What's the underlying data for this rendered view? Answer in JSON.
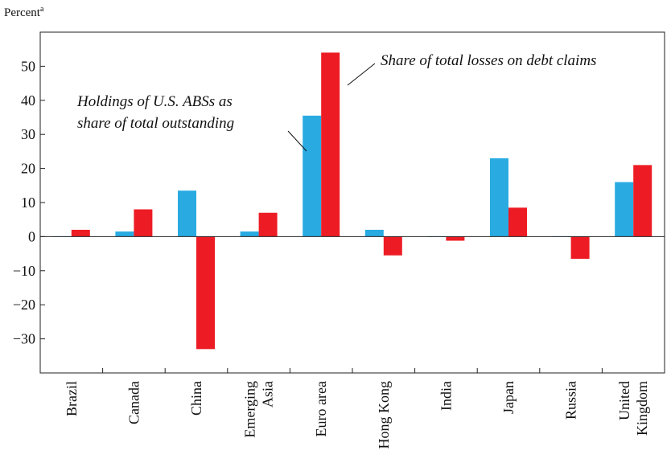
{
  "chart_data": {
    "type": "bar",
    "ylabel": "Percent",
    "ylabel_superscript": "a",
    "ylim": [
      -40,
      60
    ],
    "yticks": [
      -30,
      -20,
      -10,
      0,
      10,
      20,
      30,
      40,
      50
    ],
    "ytick_labels": [
      "−30",
      "−20",
      "−10",
      "0",
      "10",
      "20",
      "30",
      "40",
      "50"
    ],
    "categories": [
      [
        "Brazil"
      ],
      [
        "Canada"
      ],
      [
        "China"
      ],
      [
        "Emerging",
        "Asia"
      ],
      [
        "Euro area"
      ],
      [
        "Hong Kong"
      ],
      [
        "India"
      ],
      [
        "Japan"
      ],
      [
        "Russia"
      ],
      [
        "United",
        "Kingdom"
      ]
    ],
    "series": [
      {
        "name": "Holdings of U.S. ABSs as share of total outstanding",
        "color": "#29abe2",
        "values": [
          0,
          1.5,
          13.5,
          1.5,
          35.5,
          2,
          0,
          23,
          0,
          16
        ]
      },
      {
        "name": "Share of total losses on debt claims",
        "color": "#ed1c24",
        "values": [
          2,
          8,
          -33,
          7,
          54,
          -5.5,
          -1.2,
          8.5,
          -6.5,
          21
        ]
      }
    ],
    "annotations": [
      {
        "lines": [
          "Holdings of U.S. ABSs as",
          "share of total outstanding"
        ]
      },
      {
        "lines": [
          "Share of total losses on debt claims"
        ]
      }
    ],
    "grid": false,
    "legend": "none"
  }
}
